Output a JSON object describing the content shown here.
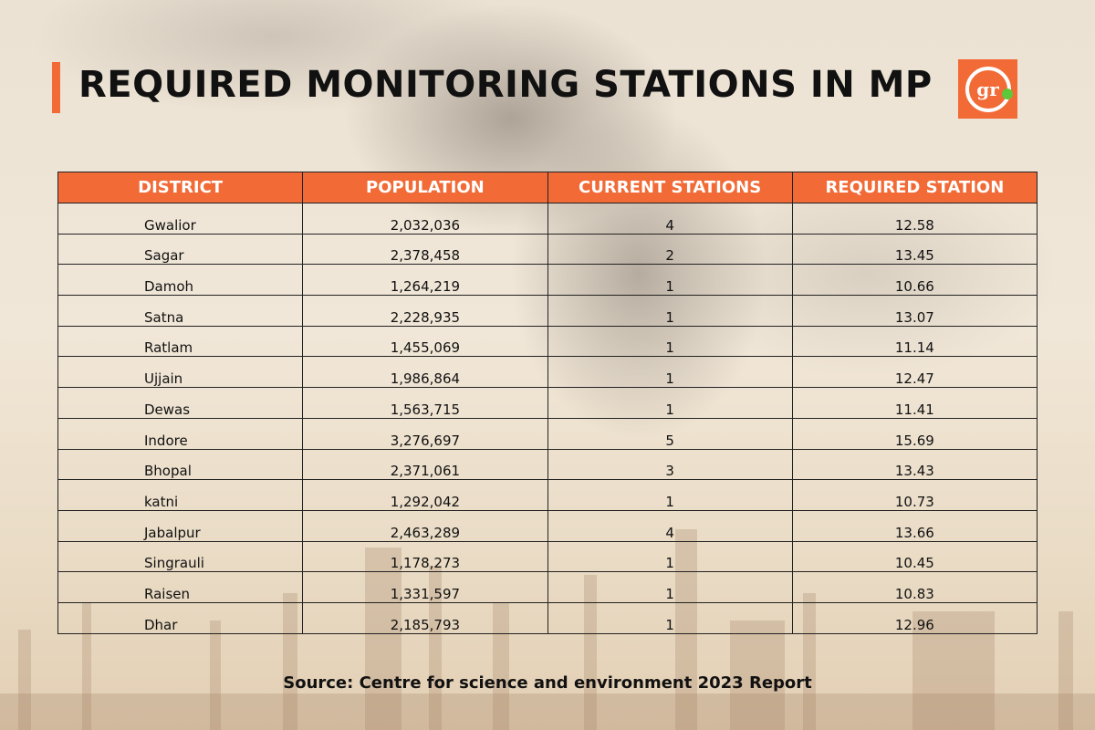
{
  "title": "REQUIRED MONITORING STATIONS IN MP",
  "logo": {
    "text": "gr",
    "colors": {
      "background": "#f26a36",
      "dot": "#5cc83a"
    }
  },
  "accent_color": "#f26a36",
  "table": {
    "headers": [
      "DISTRICT",
      "POPULATION",
      "CURRENT STATIONS",
      "REQUIRED STATION"
    ],
    "rows": [
      [
        "Gwalior",
        "2,032,036",
        "4",
        "12.58"
      ],
      [
        "Sagar",
        "2,378,458",
        "2",
        "13.45"
      ],
      [
        "Damoh",
        "1,264,219",
        "1",
        "10.66"
      ],
      [
        "Satna",
        "2,228,935",
        "1",
        "13.07"
      ],
      [
        "Ratlam",
        "1,455,069",
        "1",
        "11.14"
      ],
      [
        "Ujjain",
        "1,986,864",
        "1",
        "12.47"
      ],
      [
        "Dewas",
        "1,563,715",
        "1",
        "11.41"
      ],
      [
        "Indore",
        "3,276,697",
        "5",
        "15.69"
      ],
      [
        "Bhopal",
        "2,371,061",
        "3",
        "13.43"
      ],
      [
        "katni",
        "1,292,042",
        "1",
        "10.73"
      ],
      [
        "Jabalpur",
        "2,463,289",
        "4",
        "13.66"
      ],
      [
        "Singrauli",
        "1,178,273",
        "1",
        "10.45"
      ],
      [
        "Raisen",
        "1,331,597",
        "1",
        "10.83"
      ],
      [
        "Dhar",
        "2,185,793",
        "1",
        "12.96"
      ]
    ]
  },
  "source": "Source: Centre for science and environment 2023 Report"
}
